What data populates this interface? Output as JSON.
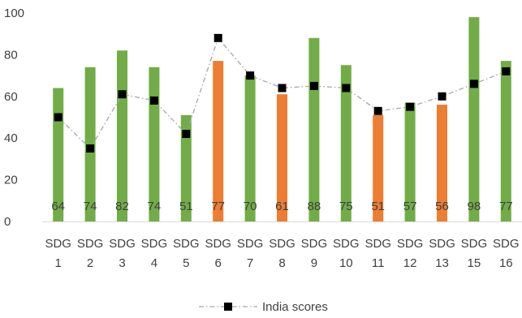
{
  "chart_data": {
    "type": "bar",
    "categories": [
      [
        "SDG",
        "1"
      ],
      [
        "SDG",
        "2"
      ],
      [
        "SDG",
        "3"
      ],
      [
        "SDG",
        "4"
      ],
      [
        "SDG",
        "5"
      ],
      [
        "SDG",
        "6"
      ],
      [
        "SDG",
        "7"
      ],
      [
        "SDG",
        "8"
      ],
      [
        "SDG",
        "9"
      ],
      [
        "SDG",
        "10"
      ],
      [
        "SDG",
        "11"
      ],
      [
        "SDG",
        "12"
      ],
      [
        "SDG",
        "13"
      ],
      [
        "SDG",
        "15"
      ],
      [
        "SDG",
        "16"
      ]
    ],
    "bar_values": [
      64,
      74,
      82,
      74,
      51,
      77,
      70,
      61,
      88,
      75,
      51,
      57,
      56,
      98,
      77
    ],
    "data_labels": [
      "64",
      "74",
      "82",
      "74",
      "51",
      "77",
      "70",
      "61",
      "88",
      "75",
      "51",
      "57",
      "56",
      "98",
      "77"
    ],
    "bar_colors": [
      "#70AD47",
      "#70AD47",
      "#70AD47",
      "#70AD47",
      "#70AD47",
      "#ED7D31",
      "#70AD47",
      "#ED7D31",
      "#70AD47",
      "#70AD47",
      "#ED7D31",
      "#70AD47",
      "#ED7D31",
      "#70AD47",
      "#70AD47"
    ],
    "series": [
      {
        "name": "India scores",
        "type": "line",
        "values": [
          50,
          35,
          61,
          58,
          42,
          88,
          70,
          64,
          65,
          64,
          53,
          55,
          60,
          66,
          72
        ],
        "color": "#A6A6A6",
        "marker_color": "#000000"
      }
    ],
    "yticks": [
      "0",
      "20",
      "40",
      "60",
      "80",
      "100"
    ],
    "ylim": [
      0,
      100
    ],
    "grid": false,
    "legend_position": "bottom"
  }
}
